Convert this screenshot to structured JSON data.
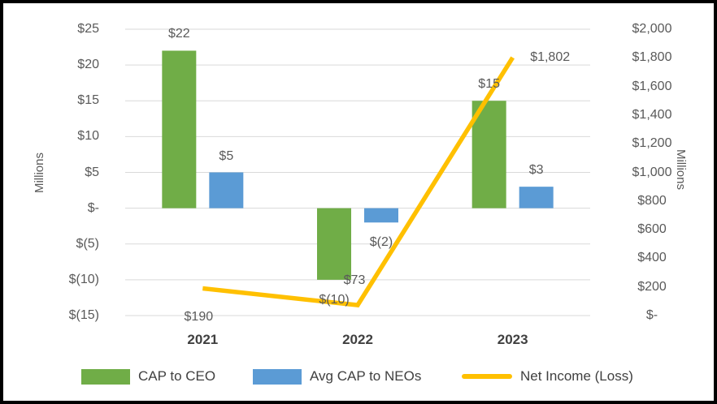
{
  "chart_data": {
    "type": "combo-bar-line",
    "categories": [
      "2021",
      "2022",
      "2023"
    ],
    "series": [
      {
        "name": "CAP to CEO",
        "type": "bar",
        "axis": "left",
        "color": "#70AD47",
        "values": [
          22,
          -10,
          15
        ],
        "labels": [
          "$22",
          "$(10)",
          "$15"
        ]
      },
      {
        "name": "Avg CAP to NEOs",
        "type": "bar",
        "axis": "left",
        "color": "#5B9BD5",
        "values": [
          5,
          -2,
          3
        ],
        "labels": [
          "$5",
          "$(2)",
          "$3"
        ]
      },
      {
        "name": "Net Income (Loss)",
        "type": "line",
        "axis": "right",
        "color": "#FFC000",
        "values": [
          190,
          73,
          1802
        ],
        "labels": [
          "$190",
          "$73",
          "$1,802"
        ],
        "label_offsets": [
          [
            -5,
            36
          ],
          [
            -4,
            -30
          ],
          [
            46,
            0
          ]
        ]
      }
    ],
    "y_left": {
      "title": "Millions",
      "min": -15,
      "max": 25,
      "step": 5,
      "tick_labels": [
        "$25",
        "$20",
        "$15",
        "$10",
        "$5",
        "$-",
        "$(5)",
        "$(10)",
        "$(15)"
      ]
    },
    "y_right": {
      "title": "Millions",
      "min": 0,
      "max": 2000,
      "step": 200,
      "tick_labels": [
        "$2,000",
        "$1,800",
        "$1,600",
        "$1,400",
        "$1,200",
        "$1,000",
        "$800",
        "$600",
        "$400",
        "$200",
        "$-"
      ]
    },
    "grid": true,
    "legend_position": "bottom",
    "colors": {
      "gridline": "#D9D9D9",
      "axis_text": "#595959",
      "data_label_text": "#595959",
      "category_text": "#404040",
      "legend_text": "#404040",
      "frame_border": "#000000"
    }
  }
}
